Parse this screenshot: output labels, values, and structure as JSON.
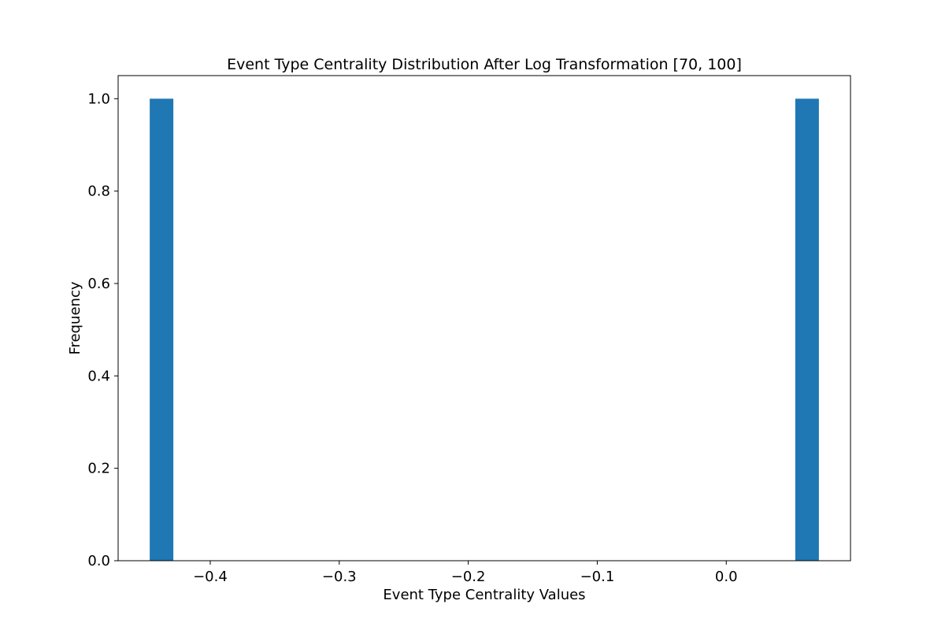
{
  "chart_data": {
    "type": "bar",
    "title": "Event Type Centrality Distribution After Log Transformation [70, 100]",
    "xlabel": "Event Type Centrality Values",
    "ylabel": "Frequency",
    "xlim": [
      -0.4714,
      0.0963
    ],
    "ylim": [
      0,
      1.05
    ],
    "xticks": [
      -0.4,
      -0.3,
      -0.2,
      -0.1,
      0.0
    ],
    "xtick_labels": [
      "−0.4",
      "−0.3",
      "−0.2",
      "−0.1",
      "0.0"
    ],
    "yticks": [
      0,
      0.2,
      0.4,
      0.6,
      0.8,
      1.0
    ],
    "ytick_labels": [
      "0.0",
      "0.2",
      "0.4",
      "0.6",
      "0.8",
      "1.0"
    ],
    "bins": [
      {
        "x0": -0.4469,
        "x1": -0.4286,
        "count": 1
      },
      {
        "x0": 0.0535,
        "x1": 0.0718,
        "count": 1
      }
    ],
    "bar_color": "#1f77b4",
    "grid": false,
    "legend": "none"
  }
}
